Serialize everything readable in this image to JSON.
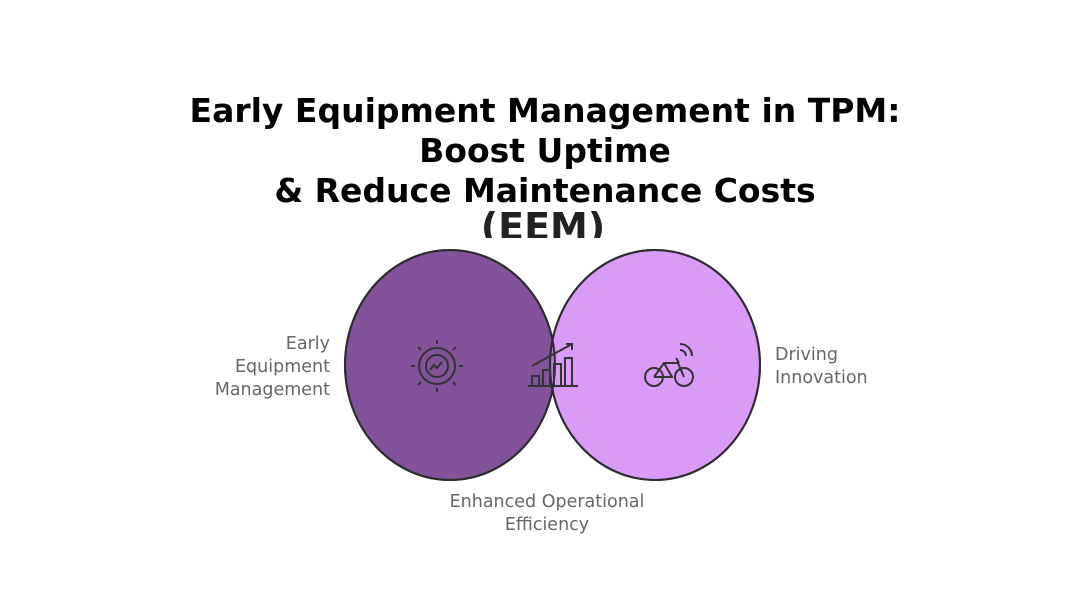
{
  "title": {
    "lines": [
      "Early Equipment Management in TPM:",
      "Boost Uptime",
      "& Reduce Maintenance Costs"
    ],
    "abbreviation": "(EEM)"
  },
  "circles": {
    "left": {
      "label": [
        "Early",
        "Equipment",
        "Management"
      ]
    },
    "right": {
      "label": [
        "Driving",
        "Innovation"
      ]
    },
    "intersection": {
      "label": [
        "Enhanced Operational",
        "Efficiency"
      ]
    }
  }
}
